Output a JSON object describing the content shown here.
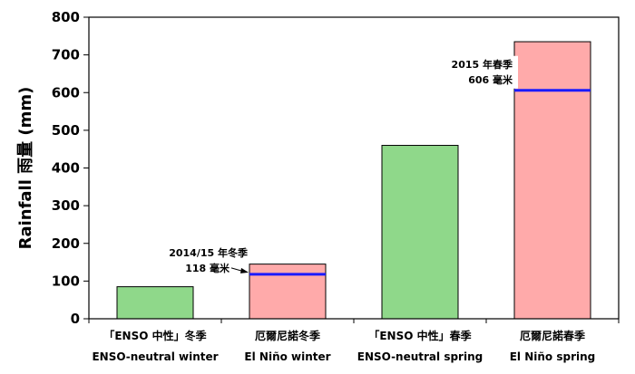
{
  "chart_data": {
    "type": "bar",
    "ylabel": "Rainfall 雨量 (mm)",
    "ylim": [
      0,
      800
    ],
    "yticks": [
      0,
      100,
      200,
      300,
      400,
      500,
      600,
      700,
      800
    ],
    "grid": false,
    "categories": [
      {
        "zh": "「ENSO 中性」冬季",
        "en": "ENSO-neutral winter"
      },
      {
        "zh": "厄爾尼諾冬季",
        "en": "El Niño winter"
      },
      {
        "zh": "「ENSO 中性」春季",
        "en": "ENSO-neutral spring"
      },
      {
        "zh": "厄爾尼諾春季",
        "en": "El Niño spring"
      }
    ],
    "values": [
      85,
      145,
      460,
      735
    ],
    "bar_colors": [
      "#8fd88a",
      "#ffaaaa",
      "#8fd88a",
      "#ffaaaa"
    ],
    "bar_edge_color": "#000000",
    "reference_lines": [
      {
        "category_index": 1,
        "value": 118,
        "label_line1": "2014/15 年冬季",
        "label_line2": "118 毫米",
        "color": "#1a1aff"
      },
      {
        "category_index": 3,
        "value": 606,
        "label_line1": "2015 年春季",
        "label_line2": "606 毫米",
        "color": "#1a1aff"
      }
    ]
  }
}
